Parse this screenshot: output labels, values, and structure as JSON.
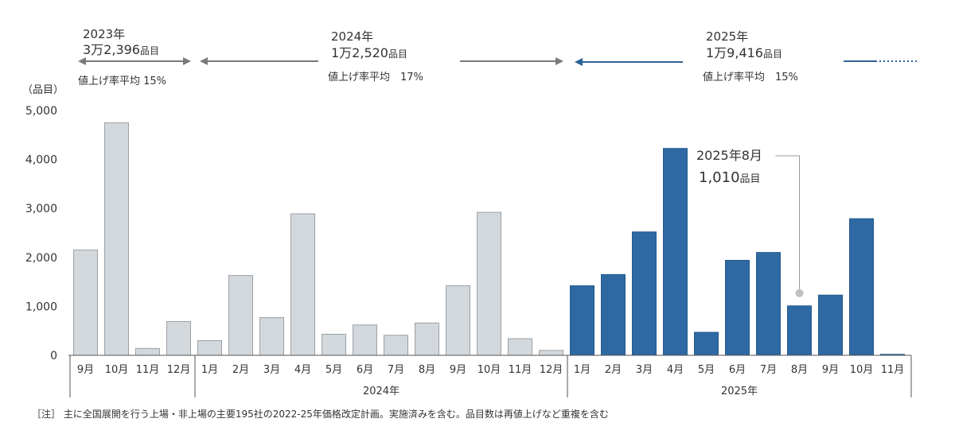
{
  "chart_data": {
    "type": "bar",
    "ylabel": "（品目）",
    "ylim": [
      0,
      5000
    ],
    "yticks": [
      "0",
      "1,000",
      "2,000",
      "3,000",
      "4,000",
      "5,000"
    ],
    "ytick_values": [
      0,
      1000,
      2000,
      3000,
      4000,
      5000
    ],
    "years": [
      {
        "label": "",
        "count": 4
      },
      {
        "label": "2024年",
        "count": 12
      },
      {
        "label": "2025年",
        "count": 11
      }
    ],
    "bars": [
      {
        "label": "9月",
        "value": 2150,
        "year": 2023
      },
      {
        "label": "10月",
        "value": 4750,
        "year": 2023
      },
      {
        "label": "11月",
        "value": 140,
        "year": 2023
      },
      {
        "label": "12月",
        "value": 690,
        "year": 2023
      },
      {
        "label": "1月",
        "value": 300,
        "year": 2024
      },
      {
        "label": "2月",
        "value": 1630,
        "year": 2024
      },
      {
        "label": "3月",
        "value": 770,
        "year": 2024
      },
      {
        "label": "4月",
        "value": 2890,
        "year": 2024
      },
      {
        "label": "5月",
        "value": 430,
        "year": 2024
      },
      {
        "label": "6月",
        "value": 620,
        "year": 2024
      },
      {
        "label": "7月",
        "value": 410,
        "year": 2024
      },
      {
        "label": "8月",
        "value": 660,
        "year": 2024
      },
      {
        "label": "9月",
        "value": 1420,
        "year": 2024
      },
      {
        "label": "10月",
        "value": 2920,
        "year": 2024
      },
      {
        "label": "11月",
        "value": 340,
        "year": 2024
      },
      {
        "label": "12月",
        "value": 100,
        "year": 2024
      },
      {
        "label": "1月",
        "value": 1420,
        "year": 2025
      },
      {
        "label": "2月",
        "value": 1650,
        "year": 2025
      },
      {
        "label": "3月",
        "value": 2520,
        "year": 2025
      },
      {
        "label": "4月",
        "value": 4225,
        "year": 2025
      },
      {
        "label": "5月",
        "value": 470,
        "year": 2025
      },
      {
        "label": "6月",
        "value": 1940,
        "year": 2025
      },
      {
        "label": "7月",
        "value": 2100,
        "year": 2025
      },
      {
        "label": "8月",
        "value": 1010,
        "year": 2025
      },
      {
        "label": "9月",
        "value": 1230,
        "year": 2025
      },
      {
        "label": "10月",
        "value": 2790,
        "year": 2025
      },
      {
        "label": "11月",
        "value": 20,
        "year": 2025
      }
    ],
    "colors": {
      "past": "#d3d8dc",
      "past_stroke": "#9aa1a7",
      "current": "#2e69a3",
      "arrow_gray": "#7a7a7a",
      "arrow_blue": "#2c6396"
    },
    "periods": [
      {
        "year_label": "2023年",
        "count_num": "3万2,396",
        "count_unit": "品目",
        "rate_label": "値上げ率平均 15%"
      },
      {
        "year_label": "2024年",
        "count_num": "1万2,520",
        "count_unit": "品目",
        "rate_label": "値上げ率平均　17%"
      },
      {
        "year_label": "2025年",
        "count_num": "1万9,416",
        "count_unit": "品目",
        "rate_label": "値上げ率平均　15%"
      }
    ],
    "callout": {
      "line1": "2025年8月",
      "value": "1,010",
      "unit": "品目",
      "bar_index": 23
    }
  },
  "note": "［注］ 主に全国展開を行う上場・非上場の主要195社の2022-25年価格改定計画。実施済みを含む。品目数は再値上げなど重複を含む"
}
